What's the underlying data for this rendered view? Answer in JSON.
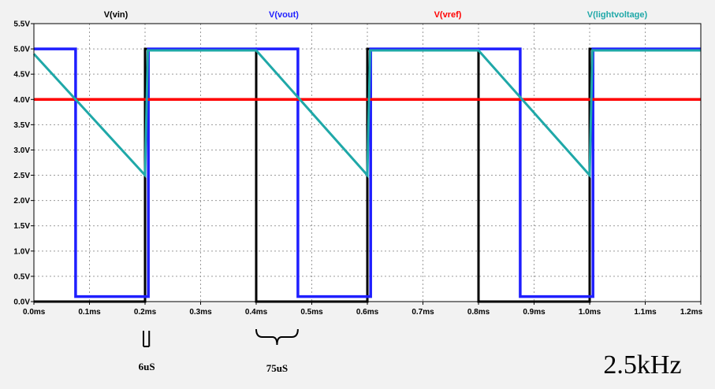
{
  "chart_data": {
    "type": "line",
    "title": "",
    "xlabel": "",
    "ylabel": "",
    "xlim": [
      0,
      1.2
    ],
    "ylim": [
      0,
      5.5
    ],
    "x_ticks": [
      0.0,
      0.1,
      0.2,
      0.3,
      0.4,
      0.5,
      0.6,
      0.7,
      0.8,
      0.9,
      1.0,
      1.1,
      1.2
    ],
    "x_tick_labels": [
      "0.0ms",
      "0.1ms",
      "0.2ms",
      "0.3ms",
      "0.4ms",
      "0.5ms",
      "0.6ms",
      "0.7ms",
      "0.8ms",
      "0.9ms",
      "1.0ms",
      "1.1ms",
      "1.2ms"
    ],
    "y_ticks": [
      0.0,
      0.5,
      1.0,
      1.5,
      2.0,
      2.5,
      3.0,
      3.5,
      4.0,
      4.5,
      5.0,
      5.5
    ],
    "y_tick_labels": [
      "0.0V",
      "0.5V",
      "1.0V",
      "1.5V",
      "2.0V",
      "2.5V",
      "3.0V",
      "3.5V",
      "4.0V",
      "4.5V",
      "5.0V",
      "5.5V"
    ],
    "grid": true,
    "legend_position": "top",
    "series": [
      {
        "name": "V(vin)",
        "color": "#000000",
        "x": [
          0.0,
          0.0,
          0.2,
          0.2,
          0.4,
          0.4,
          0.6,
          0.6,
          0.8,
          0.8,
          1.0,
          1.0,
          1.2
        ],
        "y": [
          0.0,
          0.0,
          0.0,
          5.0,
          5.0,
          0.0,
          0.0,
          5.0,
          5.0,
          0.0,
          0.0,
          5.0,
          5.0
        ]
      },
      {
        "name": "V(vout)",
        "color": "#1f1fff",
        "x": [
          0.0,
          0.075,
          0.075,
          0.206,
          0.206,
          0.475,
          0.475,
          0.606,
          0.606,
          0.875,
          0.875,
          1.006,
          1.006,
          1.2
        ],
        "y": [
          5.0,
          5.0,
          0.1,
          0.1,
          5.0,
          5.0,
          0.1,
          0.1,
          5.0,
          5.0,
          0.1,
          0.1,
          5.0,
          5.0
        ]
      },
      {
        "name": "V(vref)",
        "color": "#ff0000",
        "x": [
          0.0,
          1.2
        ],
        "y": [
          4.0,
          4.0
        ]
      },
      {
        "name": "V(lightvoltage)",
        "color": "#1fa8a8",
        "x": [
          0.0,
          0.2,
          0.2,
          0.205,
          0.4,
          0.6,
          0.6,
          0.605,
          0.8,
          1.0,
          1.0,
          1.005,
          1.2
        ],
        "y": [
          4.9,
          2.5,
          2.5,
          4.97,
          4.97,
          2.5,
          2.5,
          4.97,
          4.97,
          2.5,
          2.5,
          4.97,
          4.97
        ]
      }
    ],
    "annotations": [
      {
        "text": "6uS",
        "x_start": 0.2,
        "x_end": 0.206
      },
      {
        "text": "75uS",
        "x_start": 0.4,
        "x_end": 0.475
      },
      {
        "text": "2.5kHz"
      }
    ]
  }
}
